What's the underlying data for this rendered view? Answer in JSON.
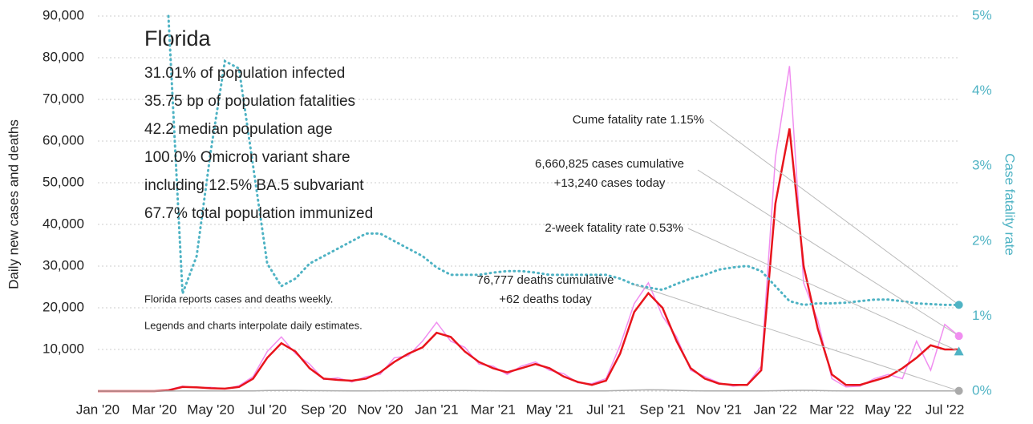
{
  "chart_data": {
    "type": "line",
    "title": "Florida",
    "facts": [
      "31.01% of population infected",
      "35.75 bp of population fatalities",
      "42.2 median population age",
      "100.0% Omicron variant share",
      "including 12.5% BA.5 subvariant",
      "67.7% total population immunized"
    ],
    "notes": [
      "Florida reports cases and deaths weekly.",
      "Legends and charts interpolate daily estimates."
    ],
    "ylabel": "Daily new cases and deaths",
    "y2label": "Case fatality rate",
    "categories": [
      "Jan '20",
      null,
      null,
      null,
      "Mar '20",
      null,
      null,
      null,
      "May '20",
      null,
      null,
      null,
      "Jul '20",
      null,
      null,
      null,
      "Sep '20",
      null,
      null,
      null,
      "Nov '20",
      null,
      null,
      null,
      "Jan '21",
      null,
      null,
      null,
      "Mar '21",
      null,
      null,
      null,
      "May '21",
      null,
      null,
      null,
      "Jul '21",
      null,
      null,
      null,
      "Sep '21",
      null,
      null,
      null,
      "Nov '21",
      null,
      null,
      null,
      "Jan '22",
      null,
      null,
      null,
      "Mar '22",
      null,
      null,
      null,
      "May '22",
      null,
      null,
      null,
      "Jul '22",
      null
    ],
    "series": [
      {
        "color": "#f08ef0",
        "axis": "y",
        "values": [
          0,
          0,
          0,
          0,
          0,
          300,
          1200,
          800,
          900,
          500,
          1300,
          3500,
          9500,
          13000,
          9000,
          6500,
          2800,
          3200,
          2200,
          3500,
          4000,
          8000,
          8500,
          12000,
          16500,
          12000,
          10500,
          6500,
          6000,
          4000,
          6000,
          7000,
          5000,
          4200,
          2000,
          1800,
          3000,
          11000,
          21000,
          26000,
          18000,
          13000,
          5000,
          3500,
          2000,
          1200,
          1600,
          6000,
          56000,
          78000,
          26000,
          17000,
          3000,
          1000,
          1200,
          3000,
          4000,
          3000,
          12000,
          5000,
          16000,
          13240
        ]
      },
      {
        "color": "#e8141c",
        "axis": "y",
        "values": [
          0,
          0,
          0,
          0,
          0,
          200,
          1000,
          900,
          700,
          600,
          1000,
          3000,
          8000,
          11500,
          9500,
          5500,
          3000,
          2700,
          2500,
          3000,
          4500,
          7000,
          9000,
          10500,
          14000,
          13000,
          9500,
          7000,
          5500,
          4500,
          5500,
          6500,
          5500,
          3500,
          2200,
          1500,
          2500,
          9000,
          19000,
          23500,
          20000,
          12000,
          5500,
          3000,
          1800,
          1500,
          1500,
          5000,
          45000,
          63000,
          30000,
          15000,
          4000,
          1500,
          1500,
          2500,
          3500,
          5500,
          8000,
          11000,
          10000,
          10000
        ]
      },
      {
        "color": "#aaaaaa",
        "axis": "y",
        "values": [
          0,
          0,
          0,
          0,
          0,
          10,
          50,
          60,
          50,
          40,
          40,
          60,
          150,
          180,
          170,
          120,
          90,
          70,
          60,
          60,
          80,
          90,
          100,
          110,
          150,
          160,
          150,
          100,
          80,
          60,
          60,
          60,
          50,
          40,
          40,
          30,
          50,
          150,
          250,
          300,
          280,
          200,
          100,
          60,
          40,
          30,
          30,
          40,
          100,
          180,
          200,
          150,
          80,
          40,
          30,
          30,
          30,
          40,
          50,
          60,
          60,
          62
        ]
      },
      {
        "color": "#4fb3c4",
        "axis": "y2",
        "values": [
          null,
          null,
          null,
          null,
          null,
          5.0,
          1.3,
          1.8,
          3.2,
          4.4,
          4.3,
          3.0,
          1.7,
          1.4,
          1.5,
          1.7,
          1.8,
          1.9,
          2.0,
          2.1,
          2.1,
          2.0,
          1.9,
          1.8,
          1.65,
          1.55,
          1.55,
          1.55,
          1.58,
          1.6,
          1.6,
          1.58,
          1.55,
          1.55,
          1.55,
          1.55,
          1.55,
          1.5,
          1.42,
          1.38,
          1.35,
          1.43,
          1.5,
          1.55,
          1.62,
          1.65,
          1.67,
          1.6,
          1.4,
          1.2,
          1.15,
          1.17,
          1.17,
          1.18,
          1.2,
          1.22,
          1.22,
          1.2,
          1.17,
          1.16,
          1.15,
          1.15
        ]
      }
    ],
    "end_points": {
      "cume_fatality_rate": 1.15,
      "two_week_fatality_rate": 0.53,
      "cases_today": 13240,
      "deaths_today": 62
    },
    "annotations": [
      [
        "Cume fatality rate 1.15%"
      ],
      [
        "6,660,825 cases cumulative",
        "+13,240 cases today"
      ],
      [
        "2-week fatality rate 0.53%"
      ],
      [
        "76,777 deaths cumulative",
        "+62 deaths today"
      ]
    ],
    "ylim": [
      0,
      90000
    ],
    "yticks": [
      {
        "value": 10000,
        "label": "10,000"
      },
      {
        "value": 20000,
        "label": "20,000"
      },
      {
        "value": 30000,
        "label": "30,000"
      },
      {
        "value": 40000,
        "label": "40,000"
      },
      {
        "value": 50000,
        "label": "50,000"
      },
      {
        "value": 60000,
        "label": "60,000"
      },
      {
        "value": 70000,
        "label": "70,000"
      },
      {
        "value": 80000,
        "label": "80,000"
      },
      {
        "value": 90000,
        "label": "90,000"
      }
    ],
    "y2lim": [
      0,
      5
    ],
    "y2ticks": [
      {
        "value": 0,
        "label": "0%"
      },
      {
        "value": 1,
        "label": "1%"
      },
      {
        "value": 2,
        "label": "2%"
      },
      {
        "value": 3,
        "label": "3%"
      },
      {
        "value": 4,
        "label": "4%"
      },
      {
        "value": 5,
        "label": "5%"
      }
    ],
    "grid": true
  }
}
